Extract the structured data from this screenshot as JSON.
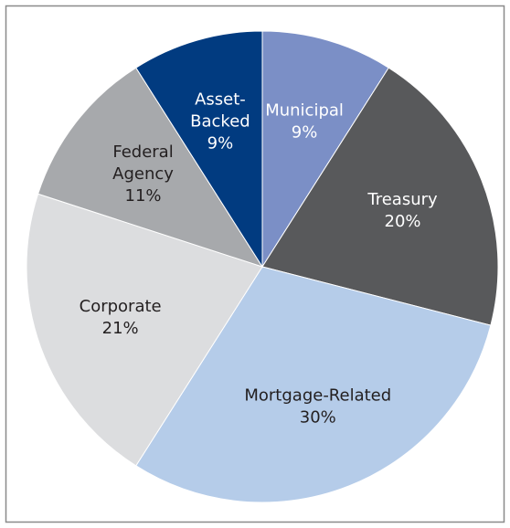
{
  "chart_data": {
    "type": "pie",
    "categories": [
      "Municipal",
      "Treasury",
      "Mortgage-Related",
      "Corporate",
      "Federal Agency",
      "Asset-Backed"
    ],
    "values": [
      9,
      20,
      30,
      21,
      11,
      9
    ],
    "value_labels": [
      "9%",
      "20%",
      "30%",
      "21%",
      "11%",
      "9%"
    ],
    "colors": [
      "#7b8fc6",
      "#58595b",
      "#b5cce9",
      "#dcdddf",
      "#a7a9ac",
      "#013b80"
    ],
    "label_colors": [
      "#ffffff",
      "#ffffff",
      "#231f20",
      "#231f20",
      "#231f20",
      "#ffffff"
    ]
  }
}
